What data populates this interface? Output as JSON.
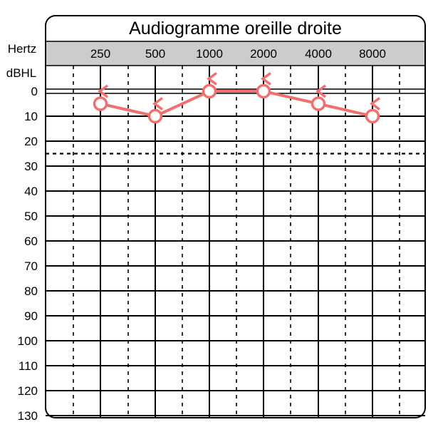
{
  "chart_data": {
    "type": "line",
    "title": "Audiogramme oreille droite",
    "xlabel": "Hertz",
    "ylabel": "dBHL",
    "categories": [
      "250",
      "500",
      "1000",
      "2000",
      "4000",
      "8000"
    ],
    "y_ticks": [
      "0",
      "10",
      "20",
      "30",
      "40",
      "50",
      "60",
      "70",
      "80",
      "90",
      "100",
      "110",
      "120",
      "130"
    ],
    "ylim": [
      0,
      130
    ],
    "y_inverted": true,
    "grid": true,
    "reference_line": {
      "value": 25,
      "style": "dashed"
    },
    "series": [
      {
        "marker": "circle",
        "color": "#f07070",
        "values": [
          5,
          10,
          0,
          0,
          5,
          10
        ]
      },
      {
        "marker": "bracket-left",
        "color": "#f07070",
        "values": [
          0,
          5,
          -5,
          -5,
          0,
          5
        ]
      }
    ]
  }
}
